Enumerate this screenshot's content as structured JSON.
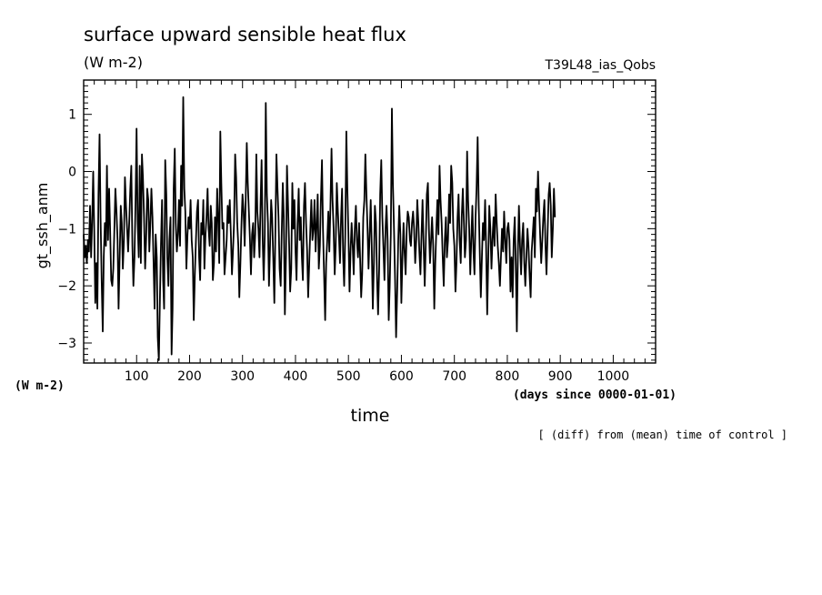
{
  "chart_data": {
    "type": "line",
    "title": "surface upward sensible heat flux",
    "subtitle": "(W m-2)",
    "run_label": "T39L48_ias_Qobs",
    "ylabel": "gt_ssh_anm",
    "yunit_label": "(W m-2)",
    "xlabel": "time",
    "xunit_label": "(days since 0000-01-01)",
    "footnote": "[ (diff) from (mean) time of control ]",
    "xlim": [
      0,
      1080
    ],
    "ylim": [
      -3.35,
      1.6
    ],
    "xticks": [
      100,
      200,
      300,
      400,
      500,
      600,
      700,
      800,
      900,
      1000
    ],
    "yticks": [
      -3,
      -2,
      -1,
      0,
      1
    ],
    "series": [
      {
        "name": "",
        "color": "#000000",
        "x_start": 0,
        "x_step": 2,
        "values": [
          -1.1,
          -1.5,
          -1.3,
          -1.6,
          -1.2,
          -1.4,
          -0.6,
          -1.5,
          -0.9,
          0.0,
          -1.0,
          -2.3,
          -1.6,
          -2.4,
          -0.4,
          0.65,
          -0.8,
          -1.9,
          -2.8,
          -1.5,
          -0.9,
          -1.3,
          0.1,
          -1.2,
          -0.3,
          -1.0,
          -1.9,
          -2.0,
          -1.7,
          -1.0,
          -0.3,
          -0.7,
          -1.2,
          -2.4,
          -1.5,
          -0.6,
          -0.9,
          -1.7,
          -1.2,
          -0.1,
          -0.6,
          -1.0,
          -1.4,
          -0.9,
          -0.3,
          0.1,
          -1.3,
          -2.0,
          -1.5,
          -0.5,
          0.75,
          -0.9,
          -1.5,
          0.1,
          -1.6,
          0.3,
          -0.1,
          -0.8,
          -1.7,
          -1.2,
          -0.3,
          -0.5,
          -1.4,
          -0.9,
          -0.3,
          -0.8,
          -1.6,
          -2.4,
          -1.1,
          -1.5,
          -2.9,
          -3.3,
          -2.2,
          -1.3,
          -0.5,
          -1.9,
          -2.4,
          0.2,
          -0.4,
          -1.5,
          -2.0,
          -1.2,
          -0.8,
          -3.2,
          -2.4,
          -0.3,
          0.4,
          -0.9,
          -1.4,
          -1.1,
          -0.5,
          -1.3,
          0.1,
          -0.6,
          1.3,
          -0.3,
          -0.7,
          -1.7,
          -1.1,
          -0.8,
          -1.0,
          -0.5,
          -1.2,
          -1.5,
          -2.6,
          -1.8,
          -1.2,
          -0.7,
          -0.5,
          -1.5,
          -1.9,
          -0.9,
          -1.1,
          -0.5,
          -1.7,
          -1.1,
          -0.8,
          -0.3,
          -1.0,
          -1.3,
          -0.6,
          -0.9,
          -1.9,
          -1.6,
          -0.8,
          -1.4,
          -0.3,
          -0.8,
          -1.6,
          0.7,
          -0.2,
          -1.0,
          -0.9,
          -1.8,
          -1.5,
          -1.2,
          -0.6,
          -0.9,
          -0.5,
          -1.1,
          -1.8,
          -1.4,
          -0.9,
          0.3,
          -0.1,
          -0.9,
          -1.3,
          -2.2,
          -1.6,
          -0.9,
          -0.4,
          -0.7,
          -1.3,
          -0.5,
          0.5,
          -0.2,
          -0.7,
          -1.2,
          -1.8,
          -1.1,
          -0.9,
          -1.5,
          -1.1,
          0.3,
          -0.7,
          -1.0,
          -1.5,
          -0.6,
          0.2,
          -1.2,
          -1.9,
          -1.1,
          1.2,
          -0.4,
          -0.9,
          -2.0,
          -1.3,
          -0.5,
          -0.8,
          -1.5,
          -2.3,
          -1.1,
          0.3,
          -0.3,
          -0.8,
          -1.7,
          -2.0,
          -1.1,
          -0.2,
          -0.8,
          -2.5,
          -1.5,
          0.1,
          -0.6,
          -1.3,
          -2.1,
          -1.7,
          -0.2,
          -1.0,
          -0.5,
          -1.4,
          -1.9,
          -0.9,
          -0.3,
          -1.2,
          -0.8,
          -1.5,
          -1.9,
          -0.6,
          -0.2,
          -0.9,
          -1.4,
          -2.2,
          -1.6,
          -1.0,
          -0.5,
          -1.2,
          -1.0,
          -0.5,
          -1.4,
          -0.9,
          -0.4,
          -1.7,
          -1.3,
          -0.5,
          0.2,
          -1.0,
          -1.8,
          -2.6,
          -1.6,
          -1.2,
          -0.7,
          -1.4,
          -0.6,
          0.4,
          -0.5,
          -1.0,
          -1.8,
          -1.3,
          -0.2,
          -0.7,
          -1.1,
          -1.6,
          -0.8,
          -0.3,
          -1.5,
          -2.0,
          -1.1,
          0.7,
          -0.3,
          -1.1,
          -2.1,
          -1.4,
          -0.9,
          -1.3,
          -1.8,
          -1.0,
          -0.6,
          -1.2,
          -1.5,
          -0.9,
          -1.5,
          -2.2,
          -1.8,
          -0.8,
          -0.5,
          0.3,
          -0.4,
          -1.0,
          -1.7,
          -1.1,
          -0.5,
          -1.3,
          -2.4,
          -1.6,
          -0.6,
          -0.9,
          -1.9,
          -2.5,
          -1.7,
          -0.4,
          0.2,
          -0.8,
          -1.3,
          -1.9,
          -1.0,
          -0.6,
          -1.2,
          -2.6,
          -2.0,
          -1.1,
          1.1,
          -0.2,
          -1.0,
          -1.9,
          -2.9,
          -2.1,
          -1.2,
          -0.6,
          -1.1,
          -2.3,
          -1.5,
          -0.9,
          -1.4,
          -1.8,
          -1.0,
          -0.7,
          -0.8,
          -1.2,
          -1.3,
          -0.9,
          -0.7,
          -1.0,
          -1.6,
          -1.2,
          -0.5,
          -0.9,
          -1.4,
          -1.8,
          -1.1,
          -0.5,
          -1.3,
          -2.0,
          -1.3,
          -0.4,
          -0.2,
          -1.0,
          -1.6,
          -1.2,
          -0.8,
          -1.3,
          -2.4,
          -1.6,
          -1.0,
          -0.5,
          -1.1,
          0.1,
          -0.5,
          -0.9,
          -1.5,
          -2.0,
          -1.2,
          -0.8,
          -1.5,
          -1.2,
          -0.4,
          -0.9,
          0.1,
          -0.2,
          -1.0,
          -1.3,
          -2.1,
          -1.6,
          -0.8,
          -0.4,
          -1.2,
          -1.6,
          -0.8,
          -0.3,
          -0.9,
          -1.5,
          -1.2,
          0.35,
          -0.5,
          -1.0,
          -1.8,
          -1.2,
          -0.6,
          -1.4,
          -1.8,
          -0.8,
          -0.3,
          0.6,
          -0.6,
          -1.4,
          -2.2,
          -1.5,
          -0.9,
          -1.2,
          -0.5,
          -1.3,
          -2.5,
          -1.5,
          -0.6,
          -1.0,
          -1.7,
          -1.2,
          -0.8,
          -1.3,
          -0.4,
          -0.9,
          -1.3,
          -1.6,
          -2.0,
          -1.5,
          -1.0,
          -1.4,
          -0.7,
          -1.2,
          -1.6,
          -1.0,
          -0.9,
          -1.2,
          -2.1,
          -1.5,
          -2.2,
          -1.2,
          -0.8,
          -1.6,
          -2.8,
          -1.4,
          -0.6,
          -1.3,
          -1.8,
          -1.2,
          -0.9,
          -1.6,
          -2.0,
          -1.5,
          -1.0,
          -1.3,
          -1.8,
          -2.2,
          -1.4,
          -1.1,
          -0.8,
          -1.5,
          -0.3,
          -0.7,
          0.0,
          -0.6,
          -1.1,
          -1.6,
          -1.2,
          -0.8,
          -0.5,
          -1.3,
          -1.8,
          -1.1,
          -0.4,
          -0.2,
          -0.6,
          -1.5,
          -1.0,
          -0.3,
          -0.8
        ]
      }
    ]
  }
}
